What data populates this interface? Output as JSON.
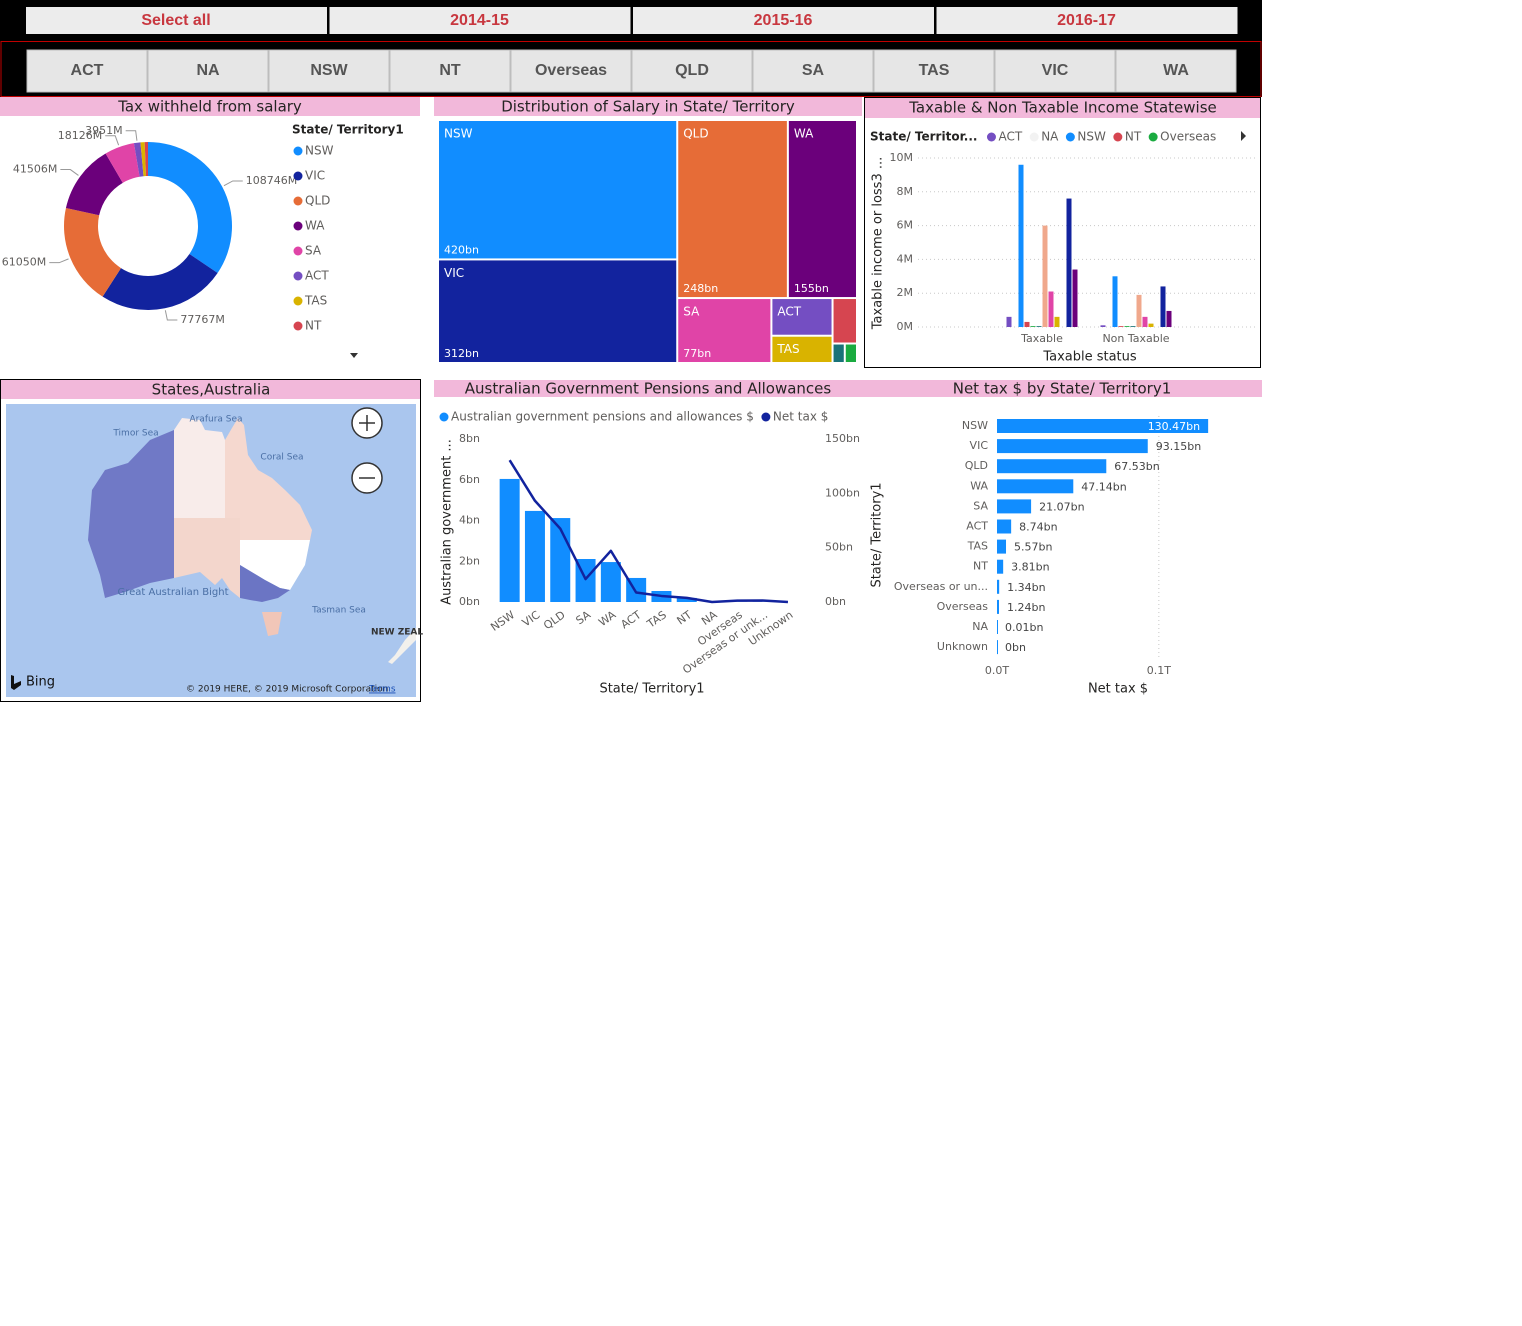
{
  "slicers": {
    "years": [
      "Select all",
      "2014-15",
      "2015-16",
      "2016-17"
    ],
    "states": [
      "ACT",
      "NA",
      "NSW",
      "NT",
      "Overseas",
      "QLD",
      "SA",
      "TAS",
      "VIC",
      "WA"
    ]
  },
  "map": {
    "title": "States,Australia",
    "labels": [
      "Timor Sea",
      "Arafura Sea",
      "Coral Sea",
      "Great Australian Bight",
      "Tasman Sea",
      "NEW ZEAL"
    ],
    "logo": "Bing",
    "attribution": "© 2019 HERE, © 2019 Microsoft Corporation",
    "terms": "Terms"
  },
  "chart_data": [
    {
      "type": "donut",
      "title": "Tax withheld from salary",
      "legend_title": "State/ Territory1",
      "categories": [
        "NSW",
        "VIC",
        "QLD",
        "WA",
        "SA",
        "ACT",
        "TAS",
        "NT"
      ],
      "values": [
        108746,
        77767,
        61050,
        41506,
        18126,
        3951,
        2500,
        2000
      ],
      "value_labels": [
        "108746M",
        "77767M",
        "61050M",
        "41506M",
        "18126M",
        "3951M",
        null,
        null
      ],
      "colors": [
        "#118DFF",
        "#12239E",
        "#E66C37",
        "#6B007B",
        "#E044A7",
        "#744EC2",
        "#D9B300",
        "#D64550"
      ]
    },
    {
      "type": "treemap",
      "title": "Distribution of Salary in State/ Territory",
      "categories": [
        "NSW",
        "VIC",
        "QLD",
        "WA",
        "SA",
        "ACT",
        "TAS",
        null,
        null,
        null
      ],
      "values": [
        420,
        312,
        248,
        155,
        77,
        29,
        21,
        14,
        3,
        3
      ],
      "value_labels": [
        "420bn",
        "312bn",
        "248bn",
        "155bn",
        "77bn",
        null,
        null,
        null,
        null,
        null
      ],
      "colors": [
        "#118DFF",
        "#12239E",
        "#E66C37",
        "#6B007B",
        "#E044A7",
        "#744EC2",
        "#D9B300",
        "#D64550",
        "#197278",
        "#1AAB40"
      ]
    },
    {
      "type": "column",
      "title": "Taxable & Non Taxable Income Statewise",
      "legend_title": "State/ Territor...",
      "x_label": "Taxable status",
      "y_label": "Taxable income or loss3 ...",
      "categories": [
        "Taxable",
        "Non Taxable"
      ],
      "series": [
        {
          "name": "ACT",
          "color": "#744EC2",
          "values": [
            0.6,
            0.1
          ]
        },
        {
          "name": "NA",
          "color": "#F2F2F2",
          "values": [
            0,
            0
          ]
        },
        {
          "name": "NSW",
          "color": "#118DFF",
          "values": [
            9.6,
            3.0
          ]
        },
        {
          "name": "NT",
          "color": "#D64550",
          "values": [
            0.3,
            0.05
          ]
        },
        {
          "name": "Overseas",
          "color": "#1AAB40",
          "values": [
            0.05,
            0.05
          ]
        },
        {
          "color": "#197278",
          "values": [
            0.05,
            0.05
          ]
        },
        {
          "color": "#F0A88C",
          "values": [
            6.0,
            1.9
          ]
        },
        {
          "color": "#E044A7",
          "values": [
            2.1,
            0.6
          ]
        },
        {
          "color": "#D9B300",
          "values": [
            0.6,
            0.2
          ]
        },
        {
          "color": "#A0A0A0",
          "values": [
            0,
            0
          ]
        },
        {
          "color": "#12239E",
          "values": [
            7.6,
            2.4
          ]
        },
        {
          "color": "#6B007B",
          "values": [
            3.4,
            0.95
          ]
        }
      ],
      "ylim": [
        0,
        10
      ],
      "yticks": [
        {
          "value": 0,
          "label": "0M"
        },
        {
          "value": 2,
          "label": "2M"
        },
        {
          "value": 4,
          "label": "4M"
        },
        {
          "value": 6,
          "label": "6M"
        },
        {
          "value": 8,
          "label": "8M"
        },
        {
          "value": 10,
          "label": "10M"
        }
      ],
      "grid": true
    },
    {
      "type": "bar-line",
      "title": "Australian Government Pensions and Allowances",
      "x_label": "State/ Territory1",
      "y_label": "Australian government ...",
      "categories": [
        "NSW",
        "VIC",
        "QLD",
        "SA",
        "WA",
        "ACT",
        "TAS",
        "NT",
        "NA",
        "Overseas",
        "Overseas or unk...",
        "Unknown"
      ],
      "series": [
        {
          "name": "Australian government pensions and allowances $",
          "color": "#118DFF",
          "type": "bar",
          "values": [
            6.04,
            4.47,
            4.12,
            2.11,
            1.96,
            1.18,
            0.54,
            0.2,
            0,
            0.01,
            0.01,
            0
          ]
        },
        {
          "name": "Net tax $",
          "color": "#12239E",
          "type": "line",
          "axis": "y2",
          "values": [
            130.47,
            93.15,
            67.53,
            21.07,
            47.14,
            8.74,
            5.57,
            3.81,
            0.01,
            1.24,
            1.34,
            0
          ]
        }
      ],
      "ylim": [
        0,
        8
      ],
      "yticks": [
        {
          "value": 0,
          "label": "0bn"
        },
        {
          "value": 2,
          "label": "2bn"
        },
        {
          "value": 4,
          "label": "4bn"
        },
        {
          "value": 6,
          "label": "6bn"
        },
        {
          "value": 8,
          "label": "8bn"
        }
      ],
      "y2lim": [
        0,
        150
      ],
      "y2ticks": [
        {
          "value": 0,
          "label": "0bn"
        },
        {
          "value": 50,
          "label": "50bn"
        },
        {
          "value": 100,
          "label": "100bn"
        },
        {
          "value": 150,
          "label": "150bn"
        }
      ],
      "grid": false
    },
    {
      "type": "hbar",
      "title": "Net tax $ by State/ Territory1",
      "x_label": "Net tax $",
      "y_label": "State/ Territory1",
      "categories": [
        "NSW",
        "VIC",
        "QLD",
        "WA",
        "SA",
        "ACT",
        "TAS",
        "NT",
        "Overseas or un...",
        "Overseas",
        "NA",
        "Unknown"
      ],
      "values": [
        130.47,
        93.15,
        67.53,
        47.14,
        21.07,
        8.74,
        5.57,
        3.81,
        1.34,
        1.24,
        0.01,
        0
      ],
      "value_labels": [
        "130.47bn",
        "93.15bn",
        "67.53bn",
        "47.14bn",
        "21.07bn",
        "8.74bn",
        "5.57bn",
        "3.81bn",
        "1.34bn",
        "1.24bn",
        "0.01bn",
        "0bn"
      ],
      "color": "#118DFF",
      "xlim": [
        0,
        131
      ],
      "xticks": [
        {
          "value": 0,
          "label": "0.0T"
        },
        {
          "value": 100,
          "label": "0.1T"
        }
      ],
      "grid": true
    }
  ]
}
